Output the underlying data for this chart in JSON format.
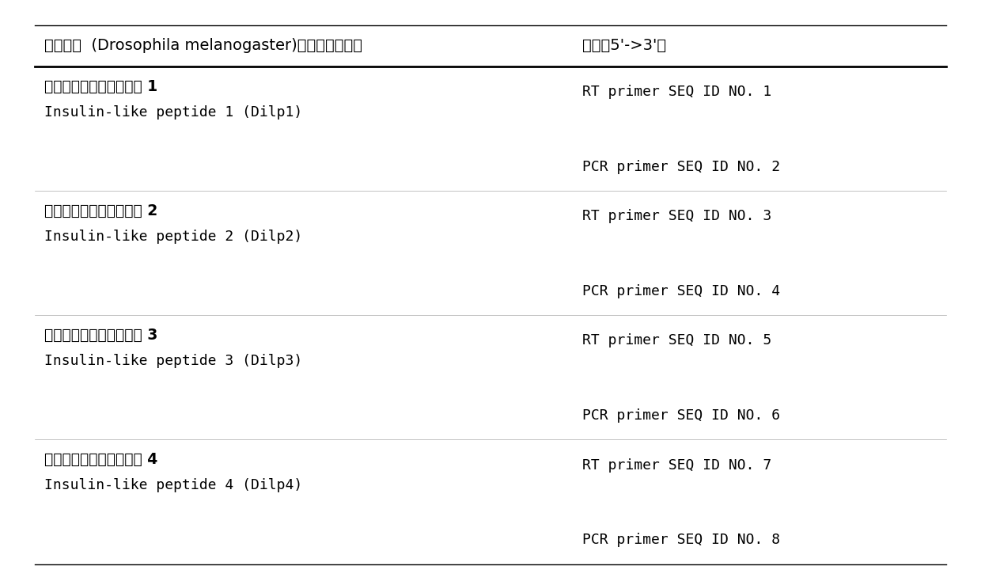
{
  "header_col1": "黑腹果蝇  (Drosophila melanogaster)胰岛素样肽基因",
  "header_col2": "序列（5'->3'）",
  "rows": [
    {
      "col1_line1": "黑腹果蝇胰岛素样肽基因 1",
      "col1_line2": "Insulin-like peptide 1 (Dilp1)",
      "col2_items": [
        "RT primer SEQ ID NO. 1",
        "PCR primer SEQ ID NO. 2"
      ]
    },
    {
      "col1_line1": "黑腹果蝇胰岛素样肽基因 2",
      "col1_line2": "Insulin-like peptide 2 (Dilp2)",
      "col2_items": [
        "RT primer SEQ ID NO. 3",
        "PCR primer SEQ ID NO. 4"
      ]
    },
    {
      "col1_line1": "黑腹果蝇胰岛素样肽基因 3",
      "col1_line2": "Insulin-like peptide 3 (Dilp3)",
      "col2_items": [
        "RT primer SEQ ID NO. 5",
        "PCR primer SEQ ID NO. 6"
      ]
    },
    {
      "col1_line1": "黑腹果蝇胰岛素样肽基因 4",
      "col1_line2": "Insulin-like peptide 4 (Dilp4)",
      "col2_items": [
        "RT primer SEQ ID NO. 7",
        "PCR primer SEQ ID NO. 8"
      ]
    }
  ],
  "bg_color": "#ffffff",
  "text_color": "#000000",
  "line_color": "#000000",
  "header_fontsize": 14,
  "body_fontsize": 13,
  "col_split": 0.575,
  "fig_width": 12.4,
  "fig_height": 7.34
}
